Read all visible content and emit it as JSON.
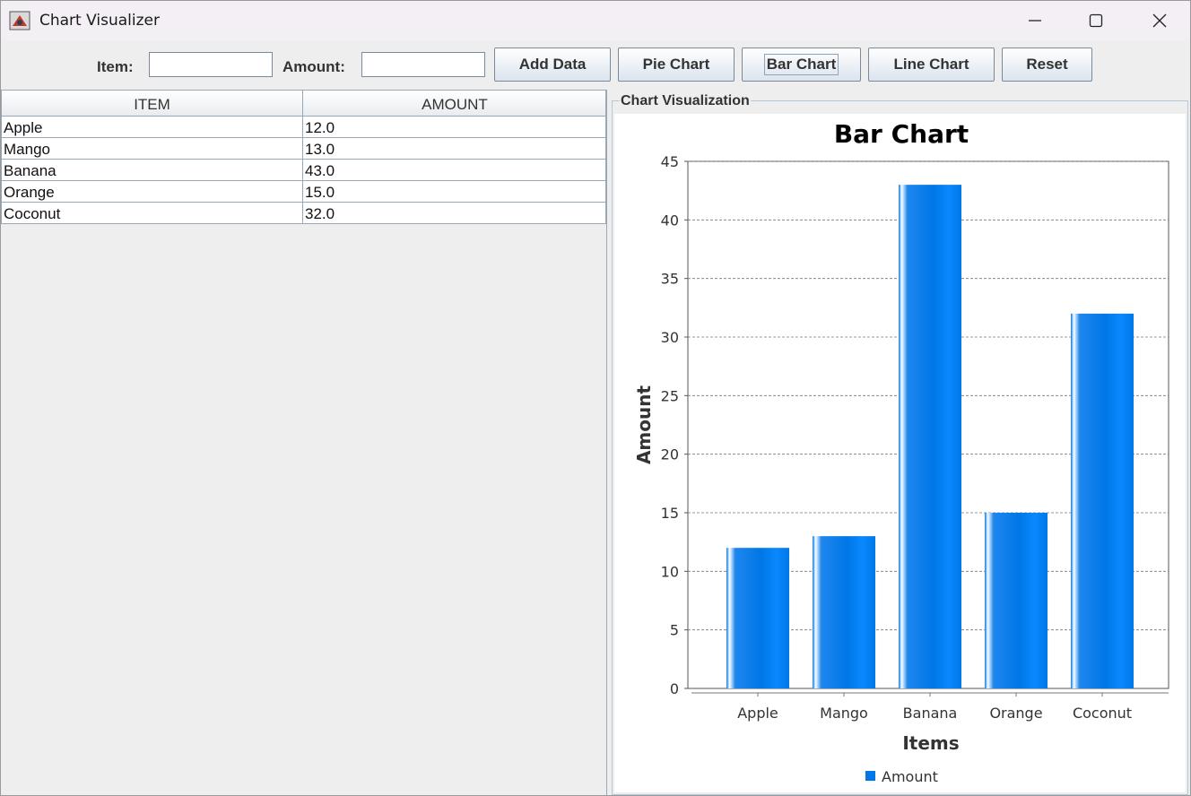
{
  "window": {
    "title": "Chart Visualizer",
    "icons": [
      "java-app-icon",
      "minimize-icon",
      "maximize-icon",
      "close-icon"
    ]
  },
  "toolbar": {
    "item_label": "Item:",
    "item_value": "",
    "amount_label": "Amount:",
    "amount_value": "",
    "add_label": "Add Data",
    "pie_label": "Pie Chart",
    "bar_label": "Bar Chart",
    "line_label": "Line Chart",
    "reset_label": "Reset"
  },
  "table": {
    "headers": [
      "ITEM",
      "AMOUNT"
    ],
    "rows": [
      [
        "Apple",
        "12.0"
      ],
      [
        "Mango",
        "13.0"
      ],
      [
        "Banana",
        "43.0"
      ],
      [
        "Orange",
        "15.0"
      ],
      [
        "Coconut",
        "32.0"
      ]
    ]
  },
  "panel": {
    "title": "Chart Visualization"
  },
  "chart_data": {
    "type": "bar",
    "title": "Bar Chart",
    "xlabel": "Items",
    "ylabel": "Amount",
    "categories": [
      "Apple",
      "Mango",
      "Banana",
      "Orange",
      "Coconut"
    ],
    "series": [
      {
        "name": "Amount",
        "values": [
          12,
          13,
          43,
          15,
          32
        ]
      }
    ],
    "ylim": [
      0,
      45
    ],
    "yticks": [
      0,
      5,
      10,
      15,
      20,
      25,
      30,
      35,
      40,
      45
    ],
    "grid": true,
    "legend": "bottom",
    "colors": {
      "bar": "#0077e6",
      "bar_light": "#4aa8ff",
      "grid": "#777777"
    }
  }
}
